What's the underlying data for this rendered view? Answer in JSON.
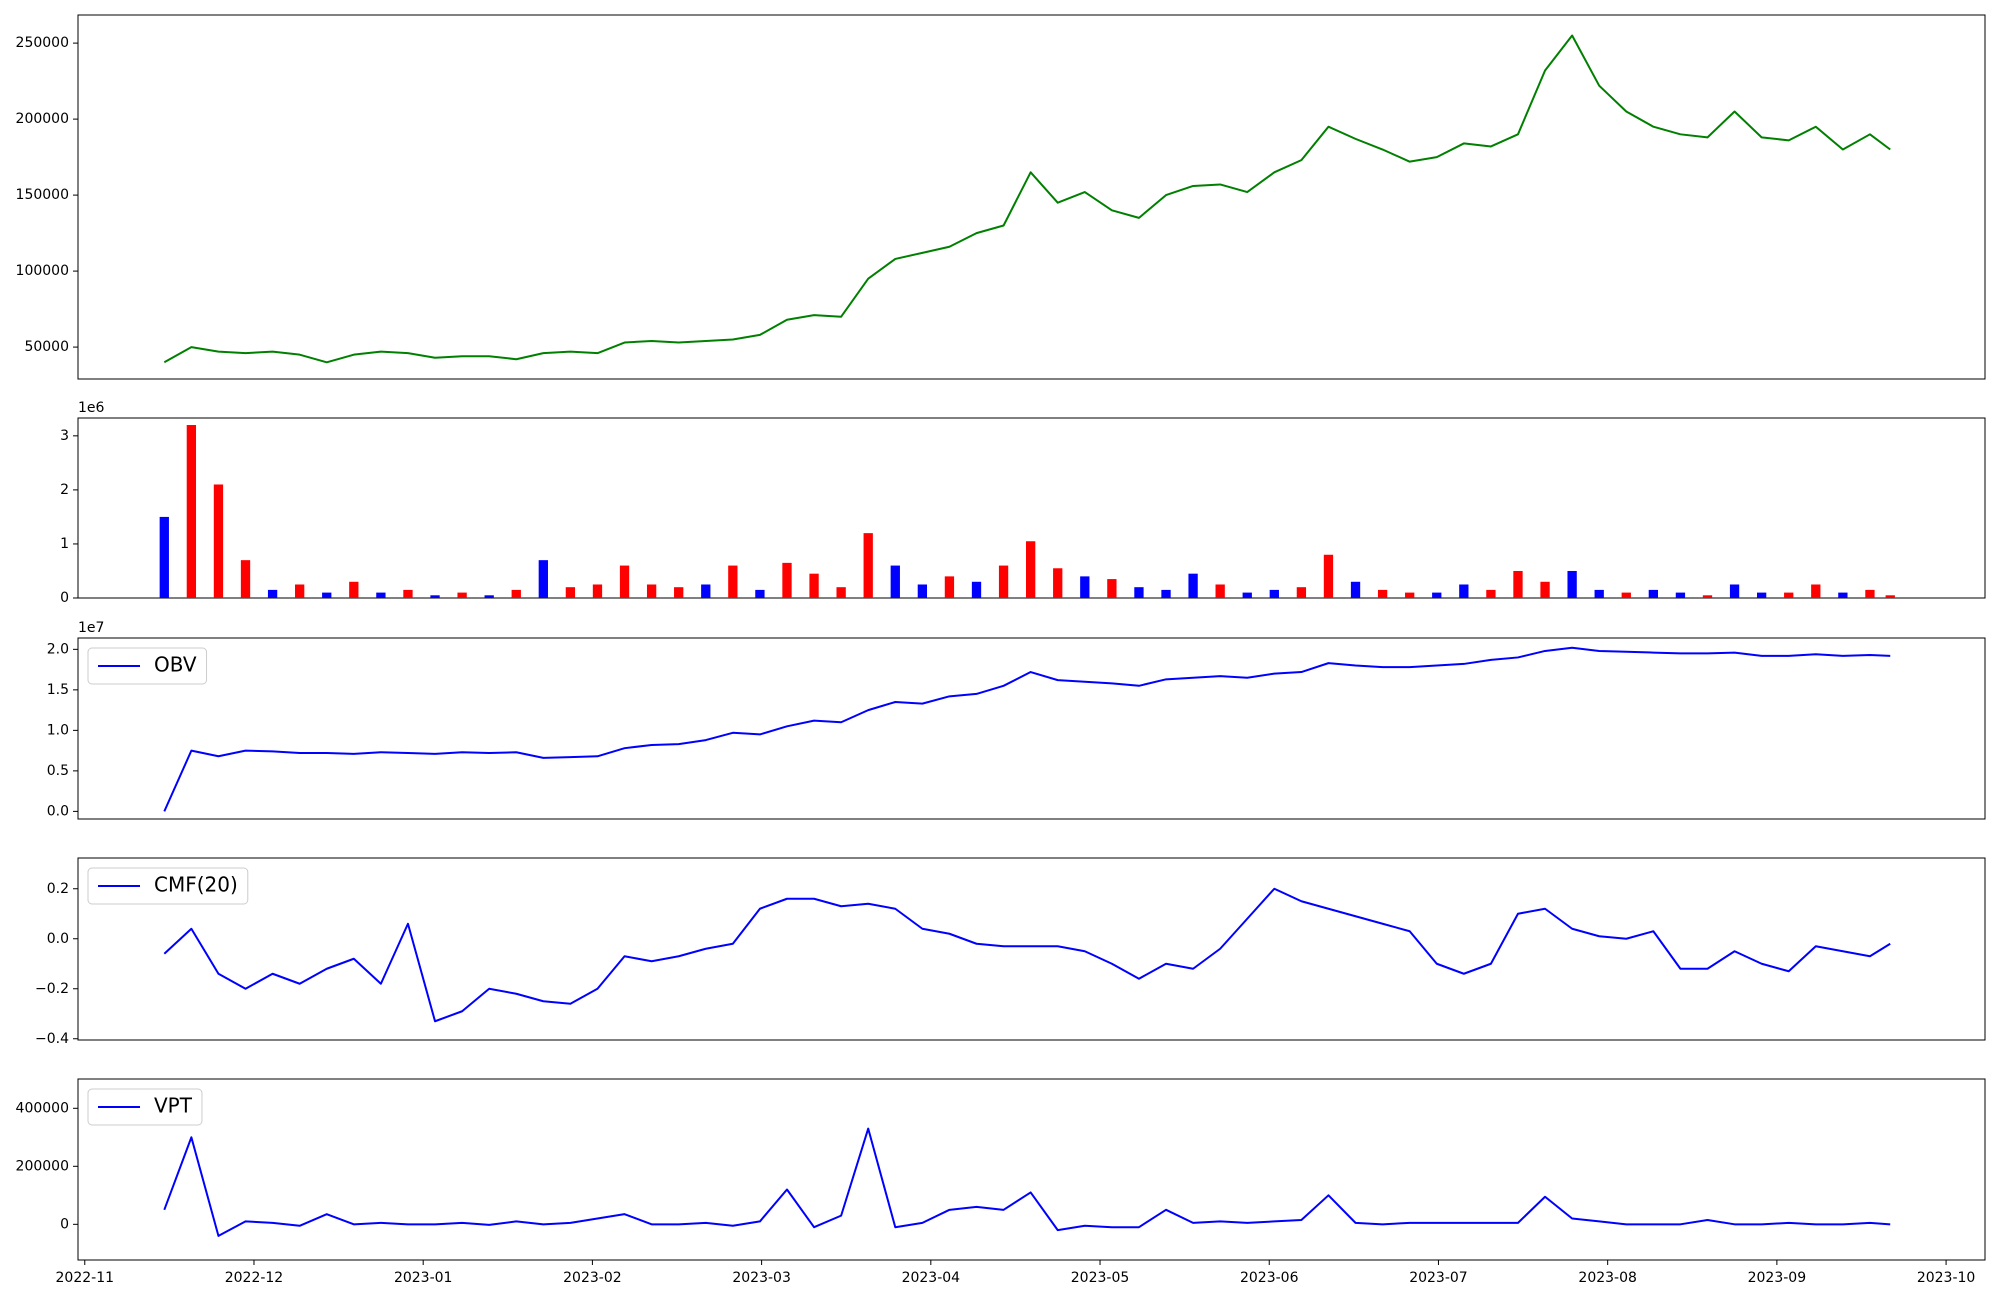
{
  "chart_data": [
    {
      "type": "line",
      "xlim": [
        -0.04,
        11.23
      ],
      "ylim": [
        29000,
        268500
      ],
      "yticks": [
        50000,
        100000,
        150000,
        200000,
        250000
      ],
      "x": [
        0.47,
        0.63,
        0.79,
        0.95,
        1.11,
        1.27,
        1.43,
        1.59,
        1.75,
        1.91,
        2.07,
        2.23,
        2.39,
        2.55,
        2.71,
        2.87,
        3.03,
        3.19,
        3.35,
        3.51,
        3.67,
        3.83,
        3.99,
        4.15,
        4.31,
        4.47,
        4.63,
        4.79,
        4.95,
        5.11,
        5.27,
        5.43,
        5.59,
        5.75,
        5.91,
        6.07,
        6.23,
        6.39,
        6.55,
        6.71,
        6.87,
        7.03,
        7.19,
        7.35,
        7.51,
        7.67,
        7.83,
        7.99,
        8.15,
        8.31,
        8.47,
        8.63,
        8.79,
        8.95,
        9.11,
        9.27,
        9.43,
        9.59,
        9.75,
        9.91,
        10.07,
        10.23,
        10.39,
        10.55,
        10.67
      ],
      "series": [
        {
          "color": "#008000",
          "values": [
            40000,
            50000,
            47000,
            46000,
            47000,
            45000,
            40000,
            45000,
            47000,
            46000,
            43000,
            44000,
            44000,
            42000,
            46000,
            47000,
            46000,
            53000,
            54000,
            53000,
            54000,
            55000,
            58000,
            68000,
            71000,
            70000,
            95000,
            108000,
            112000,
            116000,
            125000,
            130000,
            165000,
            145000,
            152000,
            140000,
            135000,
            150000,
            156000,
            157000,
            152000,
            165000,
            173000,
            195000,
            187000,
            180000,
            172000,
            175000,
            184000,
            182000,
            190000,
            232000,
            255000,
            222000,
            205000,
            195000,
            190000,
            188000,
            205000,
            188000,
            186000,
            195000,
            180000,
            190000,
            180000
          ]
        }
      ]
    },
    {
      "type": "bar",
      "offset": "1e6",
      "xlim": [
        -0.04,
        11.23
      ],
      "ylim": [
        0,
        3.33
      ],
      "yticks": [
        0,
        1,
        2,
        3
      ],
      "x": [
        0.47,
        0.63,
        0.79,
        0.95,
        1.11,
        1.27,
        1.43,
        1.59,
        1.75,
        1.91,
        2.07,
        2.23,
        2.39,
        2.55,
        2.71,
        2.87,
        3.03,
        3.19,
        3.35,
        3.51,
        3.67,
        3.83,
        3.99,
        4.15,
        4.31,
        4.47,
        4.63,
        4.79,
        4.95,
        5.11,
        5.27,
        5.43,
        5.59,
        5.75,
        5.91,
        6.07,
        6.23,
        6.39,
        6.55,
        6.71,
        6.87,
        7.03,
        7.19,
        7.35,
        7.51,
        7.67,
        7.83,
        7.99,
        8.15,
        8.31,
        8.47,
        8.63,
        8.79,
        8.95,
        9.11,
        9.27,
        9.43,
        9.59,
        9.75,
        9.91,
        10.07,
        10.23,
        10.39,
        10.55,
        10.67
      ],
      "values": [
        1.5,
        3.2,
        2.1,
        0.7,
        0.15,
        0.25,
        0.1,
        0.3,
        0.1,
        0.15,
        0.05,
        0.1,
        0.05,
        0.15,
        0.7,
        0.2,
        0.25,
        0.6,
        0.25,
        0.2,
        0.25,
        0.6,
        0.15,
        0.65,
        0.45,
        0.2,
        1.2,
        0.6,
        0.25,
        0.4,
        0.3,
        0.6,
        1.05,
        0.55,
        0.4,
        0.35,
        0.2,
        0.15,
        0.45,
        0.25,
        0.1,
        0.15,
        0.2,
        0.8,
        0.3,
        0.15,
        0.1,
        0.1,
        0.25,
        0.15,
        0.5,
        0.3,
        0.5,
        0.15,
        0.1,
        0.15,
        0.1,
        0.05,
        0.25,
        0.1,
        0.1,
        0.25,
        0.1,
        0.15,
        0.05
      ],
      "colors": [
        "#0000ff",
        "#ff0000",
        "#ff0000",
        "#ff0000",
        "#0000ff",
        "#ff0000",
        "#0000ff",
        "#ff0000",
        "#0000ff",
        "#ff0000",
        "#0000ff",
        "#ff0000",
        "#0000ff",
        "#ff0000",
        "#0000ff",
        "#ff0000",
        "#ff0000",
        "#ff0000",
        "#ff0000",
        "#ff0000",
        "#0000ff",
        "#ff0000",
        "#0000ff",
        "#ff0000",
        "#ff0000",
        "#ff0000",
        "#ff0000",
        "#0000ff",
        "#0000ff",
        "#ff0000",
        "#0000ff",
        "#ff0000",
        "#ff0000",
        "#ff0000",
        "#0000ff",
        "#ff0000",
        "#0000ff",
        "#0000ff",
        "#0000ff",
        "#ff0000",
        "#0000ff",
        "#0000ff",
        "#ff0000",
        "#ff0000",
        "#0000ff",
        "#ff0000",
        "#ff0000",
        "#0000ff",
        "#0000ff",
        "#ff0000",
        "#ff0000",
        "#ff0000",
        "#0000ff",
        "#0000ff",
        "#ff0000",
        "#0000ff",
        "#0000ff",
        "#ff0000",
        "#0000ff",
        "#0000ff",
        "#ff0000",
        "#ff0000",
        "#0000ff",
        "#ff0000",
        "#ff0000"
      ]
    },
    {
      "type": "line",
      "offset": "1e7",
      "legend": "upper left",
      "xlim": [
        -0.04,
        11.23
      ],
      "ylim": [
        -0.094,
        2.14
      ],
      "yticks": [
        {
          "value": 0,
          "label": "0.0"
        },
        {
          "value": 0.5,
          "label": "0.5"
        },
        {
          "value": 1,
          "label": "1.0"
        },
        {
          "value": 1.5,
          "label": "1.5"
        },
        {
          "value": 2,
          "label": "2.0"
        }
      ],
      "x": [
        0.47,
        0.63,
        0.79,
        0.95,
        1.11,
        1.27,
        1.43,
        1.59,
        1.75,
        1.91,
        2.07,
        2.23,
        2.39,
        2.55,
        2.71,
        2.87,
        3.03,
        3.19,
        3.35,
        3.51,
        3.67,
        3.83,
        3.99,
        4.15,
        4.31,
        4.47,
        4.63,
        4.79,
        4.95,
        5.11,
        5.27,
        5.43,
        5.59,
        5.75,
        5.91,
        6.07,
        6.23,
        6.39,
        6.55,
        6.71,
        6.87,
        7.03,
        7.19,
        7.35,
        7.51,
        7.67,
        7.83,
        7.99,
        8.15,
        8.31,
        8.47,
        8.63,
        8.79,
        8.95,
        9.11,
        9.27,
        9.43,
        9.59,
        9.75,
        9.91,
        10.07,
        10.23,
        10.39,
        10.55,
        10.67
      ],
      "series": [
        {
          "name": "OBV",
          "color": "#0000ff",
          "values": [
            0,
            0.75,
            0.68,
            0.75,
            0.74,
            0.72,
            0.72,
            0.71,
            0.73,
            0.72,
            0.71,
            0.73,
            0.72,
            0.73,
            0.66,
            0.67,
            0.68,
            0.78,
            0.82,
            0.83,
            0.88,
            0.97,
            0.95,
            1.05,
            1.12,
            1.1,
            1.25,
            1.35,
            1.33,
            1.42,
            1.45,
            1.55,
            1.72,
            1.62,
            1.6,
            1.58,
            1.55,
            1.63,
            1.65,
            1.67,
            1.65,
            1.7,
            1.72,
            1.83,
            1.8,
            1.78,
            1.78,
            1.8,
            1.82,
            1.87,
            1.9,
            1.98,
            2.02,
            1.98,
            1.97,
            1.96,
            1.95,
            1.95,
            1.96,
            1.92,
            1.92,
            1.94,
            1.92,
            1.93,
            1.92
          ]
        }
      ]
    },
    {
      "type": "line",
      "legend": "upper left",
      "xlim": [
        -0.04,
        11.23
      ],
      "ylim": [
        -0.405,
        0.323
      ],
      "yticks": [
        {
          "value": -0.4,
          "label": "−0.4"
        },
        {
          "value": -0.2,
          "label": "−0.2"
        },
        {
          "value": 0,
          "label": "0.0"
        },
        {
          "value": 0.2,
          "label": "0.2"
        }
      ],
      "x": [
        0.47,
        0.63,
        0.79,
        0.95,
        1.11,
        1.27,
        1.43,
        1.59,
        1.75,
        1.91,
        2.07,
        2.23,
        2.39,
        2.55,
        2.71,
        2.87,
        3.03,
        3.19,
        3.35,
        3.51,
        3.67,
        3.83,
        3.99,
        4.15,
        4.31,
        4.47,
        4.63,
        4.79,
        4.95,
        5.11,
        5.27,
        5.43,
        5.59,
        5.75,
        5.91,
        6.07,
        6.23,
        6.39,
        6.55,
        6.71,
        6.87,
        7.03,
        7.19,
        7.35,
        7.51,
        7.67,
        7.83,
        7.99,
        8.15,
        8.31,
        8.47,
        8.63,
        8.79,
        8.95,
        9.11,
        9.27,
        9.43,
        9.59,
        9.75,
        9.91,
        10.07,
        10.23,
        10.39,
        10.55,
        10.67
      ],
      "series": [
        {
          "name": "CMF(20)",
          "color": "#0000ff",
          "values": [
            -0.06,
            0.04,
            -0.14,
            -0.2,
            -0.14,
            -0.18,
            -0.12,
            -0.08,
            -0.18,
            0.06,
            -0.33,
            -0.29,
            -0.2,
            -0.22,
            -0.25,
            -0.26,
            -0.2,
            -0.07,
            -0.09,
            -0.07,
            -0.04,
            -0.02,
            0.12,
            0.16,
            0.16,
            0.13,
            0.14,
            0.12,
            0.04,
            0.02,
            -0.02,
            -0.03,
            -0.03,
            -0.03,
            -0.05,
            -0.1,
            -0.16,
            -0.1,
            -0.12,
            -0.04,
            0.08,
            0.2,
            0.15,
            0.12,
            0.09,
            0.06,
            0.03,
            -0.1,
            -0.14,
            -0.1,
            0.1,
            0.12,
            0.04,
            0.01,
            0,
            0.03,
            -0.12,
            -0.12,
            -0.05,
            -0.1,
            -0.13,
            -0.03,
            -0.05,
            -0.07,
            -0.02
          ]
        }
      ]
    },
    {
      "type": "line",
      "legend": "upper left",
      "xlim": [
        -0.04,
        11.23
      ],
      "ylim": [
        -123000,
        501000
      ],
      "yticks": [
        0,
        200000,
        400000
      ],
      "xticks": [
        {
          "value": 0,
          "label": "2022-11"
        },
        {
          "value": 1,
          "label": "2022-12"
        },
        {
          "value": 2,
          "label": "2023-01"
        },
        {
          "value": 3,
          "label": "2023-02"
        },
        {
          "value": 4,
          "label": "2023-03"
        },
        {
          "value": 5,
          "label": "2023-04"
        },
        {
          "value": 6,
          "label": "2023-05"
        },
        {
          "value": 7,
          "label": "2023-06"
        },
        {
          "value": 8,
          "label": "2023-07"
        },
        {
          "value": 9,
          "label": "2023-08"
        },
        {
          "value": 10,
          "label": "2023-09"
        },
        {
          "value": 11,
          "label": "2023-10"
        }
      ],
      "x": [
        0.47,
        0.63,
        0.79,
        0.95,
        1.11,
        1.27,
        1.43,
        1.59,
        1.75,
        1.91,
        2.07,
        2.23,
        2.39,
        2.55,
        2.71,
        2.87,
        3.03,
        3.19,
        3.35,
        3.51,
        3.67,
        3.83,
        3.99,
        4.15,
        4.31,
        4.47,
        4.63,
        4.79,
        4.95,
        5.11,
        5.27,
        5.43,
        5.59,
        5.75,
        5.91,
        6.07,
        6.23,
        6.39,
        6.55,
        6.71,
        6.87,
        7.03,
        7.19,
        7.35,
        7.51,
        7.67,
        7.83,
        7.99,
        8.15,
        8.31,
        8.47,
        8.63,
        8.79,
        8.95,
        9.11,
        9.27,
        9.43,
        9.59,
        9.75,
        9.91,
        10.07,
        10.23,
        10.39,
        10.55,
        10.67
      ],
      "series": [
        {
          "name": "VPT",
          "color": "#0000ff",
          "values": [
            50000,
            300000,
            -40000,
            10000,
            5000,
            -5000,
            35000,
            0,
            5000,
            0,
            0,
            5000,
            -2000,
            10000,
            0,
            5000,
            20000,
            35000,
            0,
            0,
            5000,
            -5000,
            10000,
            120000,
            -10000,
            30000,
            330000,
            -10000,
            5000,
            50000,
            60000,
            50000,
            110000,
            -20000,
            -5000,
            -10000,
            -10000,
            50000,
            5000,
            10000,
            5000,
            10000,
            15000,
            100000,
            5000,
            0,
            5000,
            5000,
            5000,
            5000,
            5000,
            95000,
            20000,
            10000,
            0,
            0,
            0,
            15000,
            0,
            0,
            5000,
            0,
            0,
            5000,
            0
          ]
        }
      ]
    }
  ]
}
